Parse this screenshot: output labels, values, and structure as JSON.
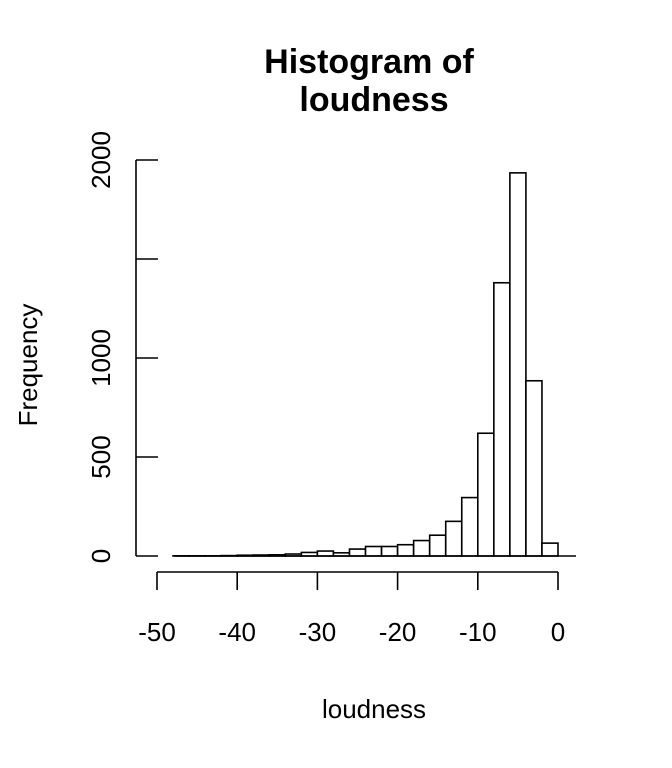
{
  "chart_data": {
    "type": "bar",
    "title_lines": [
      "Histogram of",
      "loudness"
    ],
    "xlabel": "loudness",
    "ylabel": "Frequency",
    "xlim": [
      -50,
      0
    ],
    "ylim": [
      0,
      2000
    ],
    "x_ticks": [
      -50,
      -40,
      -30,
      -20,
      -10,
      0
    ],
    "x_tick_labels": [
      "-50",
      "-40",
      "-30",
      "-20",
      "-10",
      "0"
    ],
    "y_ticks": [
      0,
      500,
      1000,
      1500,
      2000
    ],
    "y_tick_labels": [
      "0",
      "500",
      "1000",
      "",
      "2000"
    ],
    "bin_width": 2,
    "bins": [
      {
        "start": -48,
        "end": -46,
        "count": 1
      },
      {
        "start": -46,
        "end": -44,
        "count": 1
      },
      {
        "start": -44,
        "end": -42,
        "count": 1
      },
      {
        "start": -42,
        "end": -40,
        "count": 2
      },
      {
        "start": -40,
        "end": -38,
        "count": 4
      },
      {
        "start": -38,
        "end": -36,
        "count": 5
      },
      {
        "start": -36,
        "end": -34,
        "count": 6
      },
      {
        "start": -34,
        "end": -32,
        "count": 10
      },
      {
        "start": -32,
        "end": -30,
        "count": 18
      },
      {
        "start": -30,
        "end": -28,
        "count": 25
      },
      {
        "start": -28,
        "end": -26,
        "count": 16
      },
      {
        "start": -26,
        "end": -24,
        "count": 35
      },
      {
        "start": -24,
        "end": -22,
        "count": 48
      },
      {
        "start": -22,
        "end": -20,
        "count": 48
      },
      {
        "start": -20,
        "end": -18,
        "count": 57
      },
      {
        "start": -18,
        "end": -16,
        "count": 78
      },
      {
        "start": -16,
        "end": -14,
        "count": 105
      },
      {
        "start": -14,
        "end": -12,
        "count": 175
      },
      {
        "start": -12,
        "end": -10,
        "count": 295
      },
      {
        "start": -10,
        "end": -8,
        "count": 620
      },
      {
        "start": -8,
        "end": -6,
        "count": 1380
      },
      {
        "start": -6,
        "end": -4,
        "count": 1935
      },
      {
        "start": -4,
        "end": -2,
        "count": 885
      },
      {
        "start": -2,
        "end": 0,
        "count": 65
      }
    ]
  }
}
